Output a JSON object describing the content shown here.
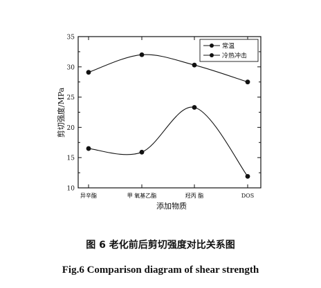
{
  "chart_data": {
    "type": "line",
    "categories": [
      "异辛酯",
      "甲 氧基乙酯",
      "羟丙 酯",
      "DOS"
    ],
    "series": [
      {
        "name": "常温",
        "values": [
          29.1,
          32.0,
          30.3,
          27.5
        ]
      },
      {
        "name": "冷热冲击",
        "values": [
          16.5,
          15.9,
          23.3,
          11.9
        ]
      }
    ],
    "xlabel": "添加物质",
    "ylabel": "剪切强度/MPa",
    "ylim": [
      10,
      35
    ],
    "yticks": [
      "10",
      "15",
      "20",
      "25",
      "30",
      "35"
    ],
    "grid": false,
    "legend_position": "top-right"
  },
  "captions": {
    "cn": "图 6 老化前后剪切强度对比关系图",
    "en": "Fig.6 Comparison diagram of shear strength"
  }
}
